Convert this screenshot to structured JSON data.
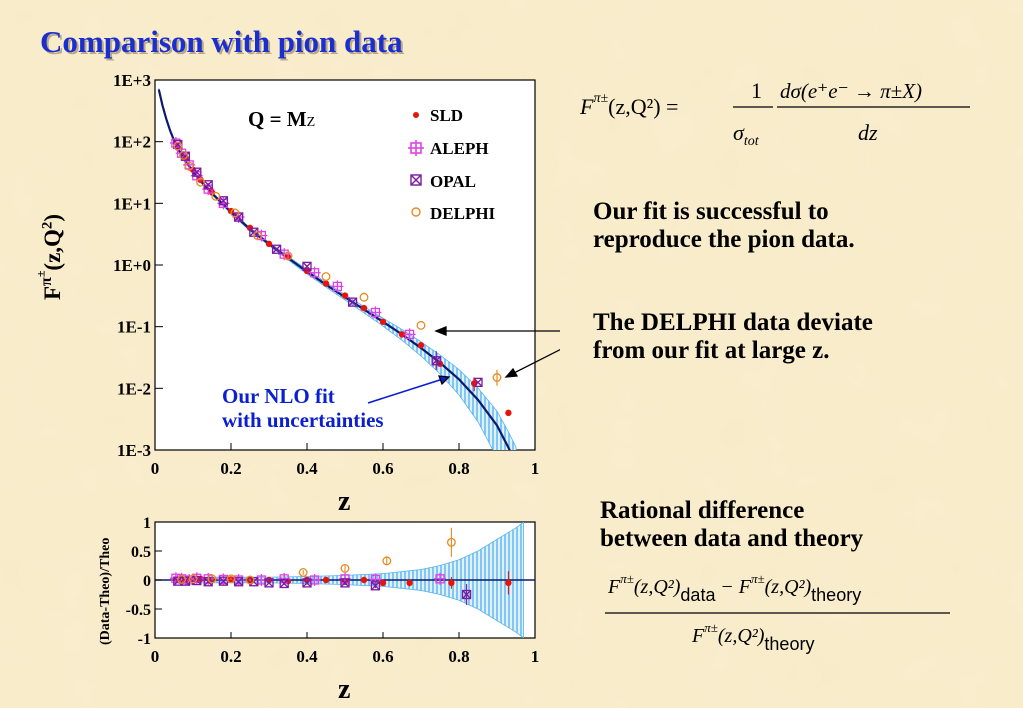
{
  "title": "Comparison with pion data",
  "upper_plot": {
    "ylabel_main": "F",
    "ylabel_sup": "π",
    "ylabel_supsup": "±",
    "ylabel_args": "(z,Q",
    "ylabel_args_sup": "2",
    "ylabel_args_close": ")",
    "xlabel": "z",
    "scale_main": "Q = M",
    "scale_sub": "Z",
    "annotation_line1": "Our NLO fit",
    "annotation_line2": "with uncertainties"
  },
  "lower_plot": {
    "ylabel": "(Data-Theo)/Theo",
    "xlabel": "z"
  },
  "formula": {
    "lhs": "F",
    "lhs_sup": "π±",
    "args": "(z,Q²) =",
    "num1": "1",
    "den1": "σ",
    "den1_sub": "tot",
    "num2": "dσ(e⁺e⁻ → π±X)",
    "den2": "dz"
  },
  "notes": {
    "fit_success_line1": "Our fit is successful to",
    "fit_success_line2": "reproduce the pion data.",
    "delphi_line1": "The DELPHI data deviate",
    "delphi_line2": "from our fit at large z.",
    "rational_line1": "Rational difference",
    "rational_line2": "between data and theory"
  },
  "ratio_formula": {
    "num_left": "F",
    "num_left_sup": "π±",
    "num_left_args": "(z,Q²)",
    "num_left_sub": "data",
    "minus": "−",
    "num_right": "F",
    "num_right_sup": "π±",
    "num_right_args": "(z,Q²)",
    "num_right_sub": "theory",
    "den": "F",
    "den_sup": "π±",
    "den_args": "(z,Q²)",
    "den_sub": "theory"
  },
  "colors": {
    "title": "#1b2fcf",
    "fit_line": "#0a1a6e",
    "band": "#5ab4f0",
    "sld": "#e8140c",
    "aleph": "#e040e8",
    "opal": "#7a1aa0",
    "delphi": "#e88a20"
  },
  "chart_data": [
    {
      "type": "scatter",
      "x_range": [
        0,
        1
      ],
      "y_scale": "log",
      "y_range": [
        0.001,
        1000
      ],
      "x_ticks": [
        "0",
        "0.2",
        "0.4",
        "0.6",
        "0.8",
        "1"
      ],
      "y_ticks": [
        "1E-3",
        "1E-2",
        "1E-1",
        "1E+0",
        "1E+1",
        "1E+2",
        "1E+3"
      ],
      "legend_position": "top-right",
      "fit": {
        "x": [
          0.01,
          0.02,
          0.03,
          0.04,
          0.05,
          0.06,
          0.08,
          0.1,
          0.12,
          0.15,
          0.2,
          0.25,
          0.3,
          0.35,
          0.4,
          0.45,
          0.5,
          0.55,
          0.6,
          0.65,
          0.7,
          0.75,
          0.8,
          0.85,
          0.9,
          0.93,
          0.95
        ],
        "y": [
          700,
          380,
          230,
          150,
          105,
          78,
          48,
          33,
          23,
          14.5,
          7.2,
          3.8,
          2.2,
          1.3,
          0.78,
          0.48,
          0.3,
          0.19,
          0.12,
          0.075,
          0.045,
          0.026,
          0.014,
          0.0065,
          0.0025,
          0.0011,
          0.0006
        ],
        "band_rel": [
          0.05,
          0.05,
          0.05,
          0.05,
          0.05,
          0.05,
          0.05,
          0.05,
          0.05,
          0.05,
          0.05,
          0.06,
          0.06,
          0.07,
          0.08,
          0.09,
          0.1,
          0.12,
          0.15,
          0.2,
          0.26,
          0.34,
          0.44,
          0.56,
          0.7,
          0.8,
          0.85
        ]
      },
      "series": [
        {
          "name": "SLD",
          "marker": "dot",
          "x": [
            0.06,
            0.08,
            0.1,
            0.12,
            0.15,
            0.2,
            0.25,
            0.3,
            0.35,
            0.4,
            0.45,
            0.5,
            0.55,
            0.6,
            0.65,
            0.7,
            0.75,
            0.84,
            0.93
          ],
          "y": [
            80,
            55,
            35,
            24,
            15,
            7.5,
            4,
            2.2,
            1.35,
            0.8,
            0.5,
            0.32,
            0.2,
            0.12,
            0.075,
            0.05,
            0.025,
            0.012,
            0.004
          ]
        },
        {
          "name": "ALEPH",
          "marker": "cross",
          "x": [
            0.055,
            0.07,
            0.09,
            0.11,
            0.14,
            0.18,
            0.22,
            0.28,
            0.34,
            0.42,
            0.48,
            0.58,
            0.67
          ],
          "y": [
            95,
            65,
            42,
            28,
            17,
            10,
            6,
            3,
            1.5,
            0.75,
            0.45,
            0.17,
            0.075
          ]
        },
        {
          "name": "OPAL",
          "marker": "xbox",
          "x": [
            0.06,
            0.08,
            0.11,
            0.14,
            0.18,
            0.22,
            0.26,
            0.32,
            0.4,
            0.52,
            0.74,
            0.85
          ],
          "y": [
            90,
            58,
            32,
            20,
            11,
            6,
            3.4,
            1.8,
            0.95,
            0.25,
            0.028,
            0.0125
          ]
        },
        {
          "name": "DELPHI",
          "marker": "circle",
          "x": [
            0.06,
            0.075,
            0.09,
            0.12,
            0.16,
            0.21,
            0.27,
            0.35,
            0.45,
            0.55,
            0.7,
            0.9
          ],
          "y": [
            85,
            60,
            40,
            22,
            13,
            7,
            3,
            1.4,
            0.65,
            0.3,
            0.105,
            0.015
          ]
        }
      ]
    },
    {
      "type": "scatter",
      "x_range": [
        0,
        1
      ],
      "y_range": [
        -1,
        1
      ],
      "x_ticks": [
        "0",
        "0.2",
        "0.4",
        "0.6",
        "0.8",
        "1"
      ],
      "y_ticks": [
        "1",
        "0.5",
        "0",
        "-0.5",
        "-1"
      ],
      "band": {
        "x": [
          0.05,
          0.1,
          0.2,
          0.3,
          0.4,
          0.5,
          0.6,
          0.7,
          0.75,
          0.8,
          0.85,
          0.9,
          0.95,
          0.97
        ],
        "half_width": [
          0.05,
          0.05,
          0.05,
          0.05,
          0.06,
          0.08,
          0.11,
          0.18,
          0.25,
          0.35,
          0.5,
          0.7,
          0.9,
          1.0
        ]
      },
      "series": [
        {
          "name": "SLD",
          "marker": "dot",
          "x": [
            0.06,
            0.08,
            0.1,
            0.12,
            0.15,
            0.2,
            0.25,
            0.3,
            0.35,
            0.4,
            0.45,
            0.5,
            0.55,
            0.6,
            0.67,
            0.78,
            0.93
          ],
          "y": [
            0,
            0,
            0,
            0.02,
            0,
            0.01,
            0,
            0,
            -0.02,
            0,
            0,
            -0.03,
            0,
            -0.05,
            -0.05,
            -0.05,
            -0.05
          ],
          "err": [
            0.02,
            0.02,
            0.02,
            0.02,
            0.02,
            0.02,
            0.02,
            0.02,
            0.02,
            0.02,
            0.03,
            0.03,
            0.04,
            0.05,
            0.06,
            0.1,
            0.2
          ]
        },
        {
          "name": "ALEPH",
          "marker": "cross",
          "x": [
            0.055,
            0.07,
            0.09,
            0.11,
            0.14,
            0.18,
            0.22,
            0.28,
            0.34,
            0.42,
            0.5,
            0.58,
            0.75
          ],
          "y": [
            0.03,
            0.02,
            0,
            0.03,
            0.02,
            0.01,
            0,
            0,
            0.02,
            0,
            0.02,
            0.01,
            0.02
          ],
          "err": [
            0.02,
            0.02,
            0.02,
            0.02,
            0.02,
            0.02,
            0.02,
            0.02,
            0.02,
            0.03,
            0.03,
            0.04,
            0.05
          ]
        },
        {
          "name": "OPAL",
          "marker": "xbox",
          "x": [
            0.06,
            0.08,
            0.11,
            0.14,
            0.18,
            0.22,
            0.26,
            0.3,
            0.34,
            0.4,
            0.5,
            0.58,
            0.82
          ],
          "y": [
            -0.02,
            -0.02,
            -0.01,
            -0.03,
            -0.02,
            -0.03,
            -0.03,
            -0.05,
            -0.06,
            -0.05,
            -0.05,
            -0.1,
            -0.25
          ],
          "err": [
            0.02,
            0.02,
            0.02,
            0.02,
            0.02,
            0.02,
            0.02,
            0.02,
            0.02,
            0.03,
            0.03,
            0.04,
            0.18
          ]
        },
        {
          "name": "DELPHI",
          "marker": "circle",
          "x": [
            0.07,
            0.1,
            0.15,
            0.2,
            0.25,
            0.39,
            0.5,
            0.61,
            0.78
          ],
          "y": [
            0.01,
            0.02,
            0.02,
            0.02,
            0,
            0.13,
            0.2,
            0.33,
            0.65
          ],
          "err": [
            0.02,
            0.02,
            0.02,
            0.02,
            0.02,
            0.04,
            0.05,
            0.08,
            0.25
          ]
        }
      ]
    }
  ]
}
